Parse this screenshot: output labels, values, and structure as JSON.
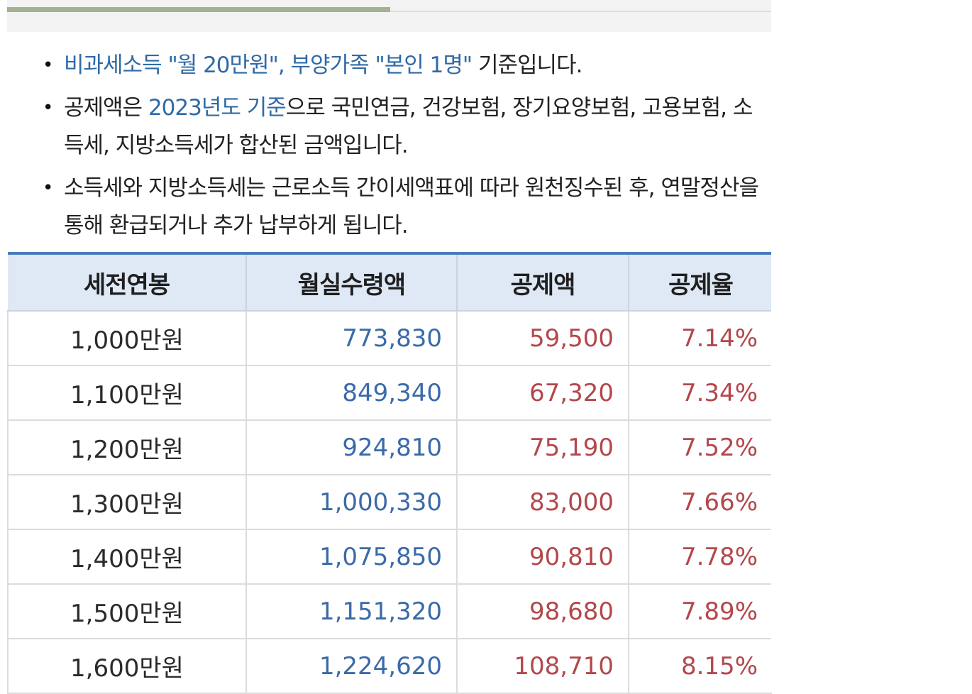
{
  "notes": [
    {
      "parts": [
        {
          "text": "비과세소득 \"월 20만원\", 부양가족 \"본인 1명\"",
          "highlight": true
        },
        {
          "text": " 기준입니다.",
          "highlight": false
        }
      ]
    },
    {
      "parts": [
        {
          "text": "공제액은 ",
          "highlight": false
        },
        {
          "text": "2023년도 기준",
          "highlight": true
        },
        {
          "text": "으로 국민연금, 건강보험, 장기요양보험, 고용보험, 소득세, 지방소득세가 합산된 금액입니다.",
          "highlight": false
        }
      ]
    },
    {
      "parts": [
        {
          "text": "소득세와 지방소득세는 근로소득 간이세액표에 따라 원천징수된 후, 연말정산을 통해 환급되거나 추가 납부하게 됩니다.",
          "highlight": false
        }
      ]
    }
  ],
  "table": {
    "headers": [
      "세전연봉",
      "월실수령액",
      "공제액",
      "공제율"
    ],
    "rows": [
      {
        "salary": "1,000만원",
        "net": "773,830",
        "deduction": "59,500",
        "rate": "7.14%"
      },
      {
        "salary": "1,100만원",
        "net": "849,340",
        "deduction": "67,320",
        "rate": "7.34%"
      },
      {
        "salary": "1,200만원",
        "net": "924,810",
        "deduction": "75,190",
        "rate": "7.52%"
      },
      {
        "salary": "1,300만원",
        "net": "1,000,330",
        "deduction": "83,000",
        "rate": "7.66%"
      },
      {
        "salary": "1,400만원",
        "net": "1,075,850",
        "deduction": "90,810",
        "rate": "7.78%"
      },
      {
        "salary": "1,500만원",
        "net": "1,151,320",
        "deduction": "98,680",
        "rate": "7.89%"
      },
      {
        "salary": "1,600만원",
        "net": "1,224,620",
        "deduction": "108,710",
        "rate": "8.15%"
      }
    ]
  },
  "colors": {
    "highlight_text": "#2f6aa6",
    "net_amount": "#3a6aa8",
    "deduction": "#b3474b",
    "header_bg": "#dfe8f5",
    "header_border": "#4a7bbd"
  }
}
